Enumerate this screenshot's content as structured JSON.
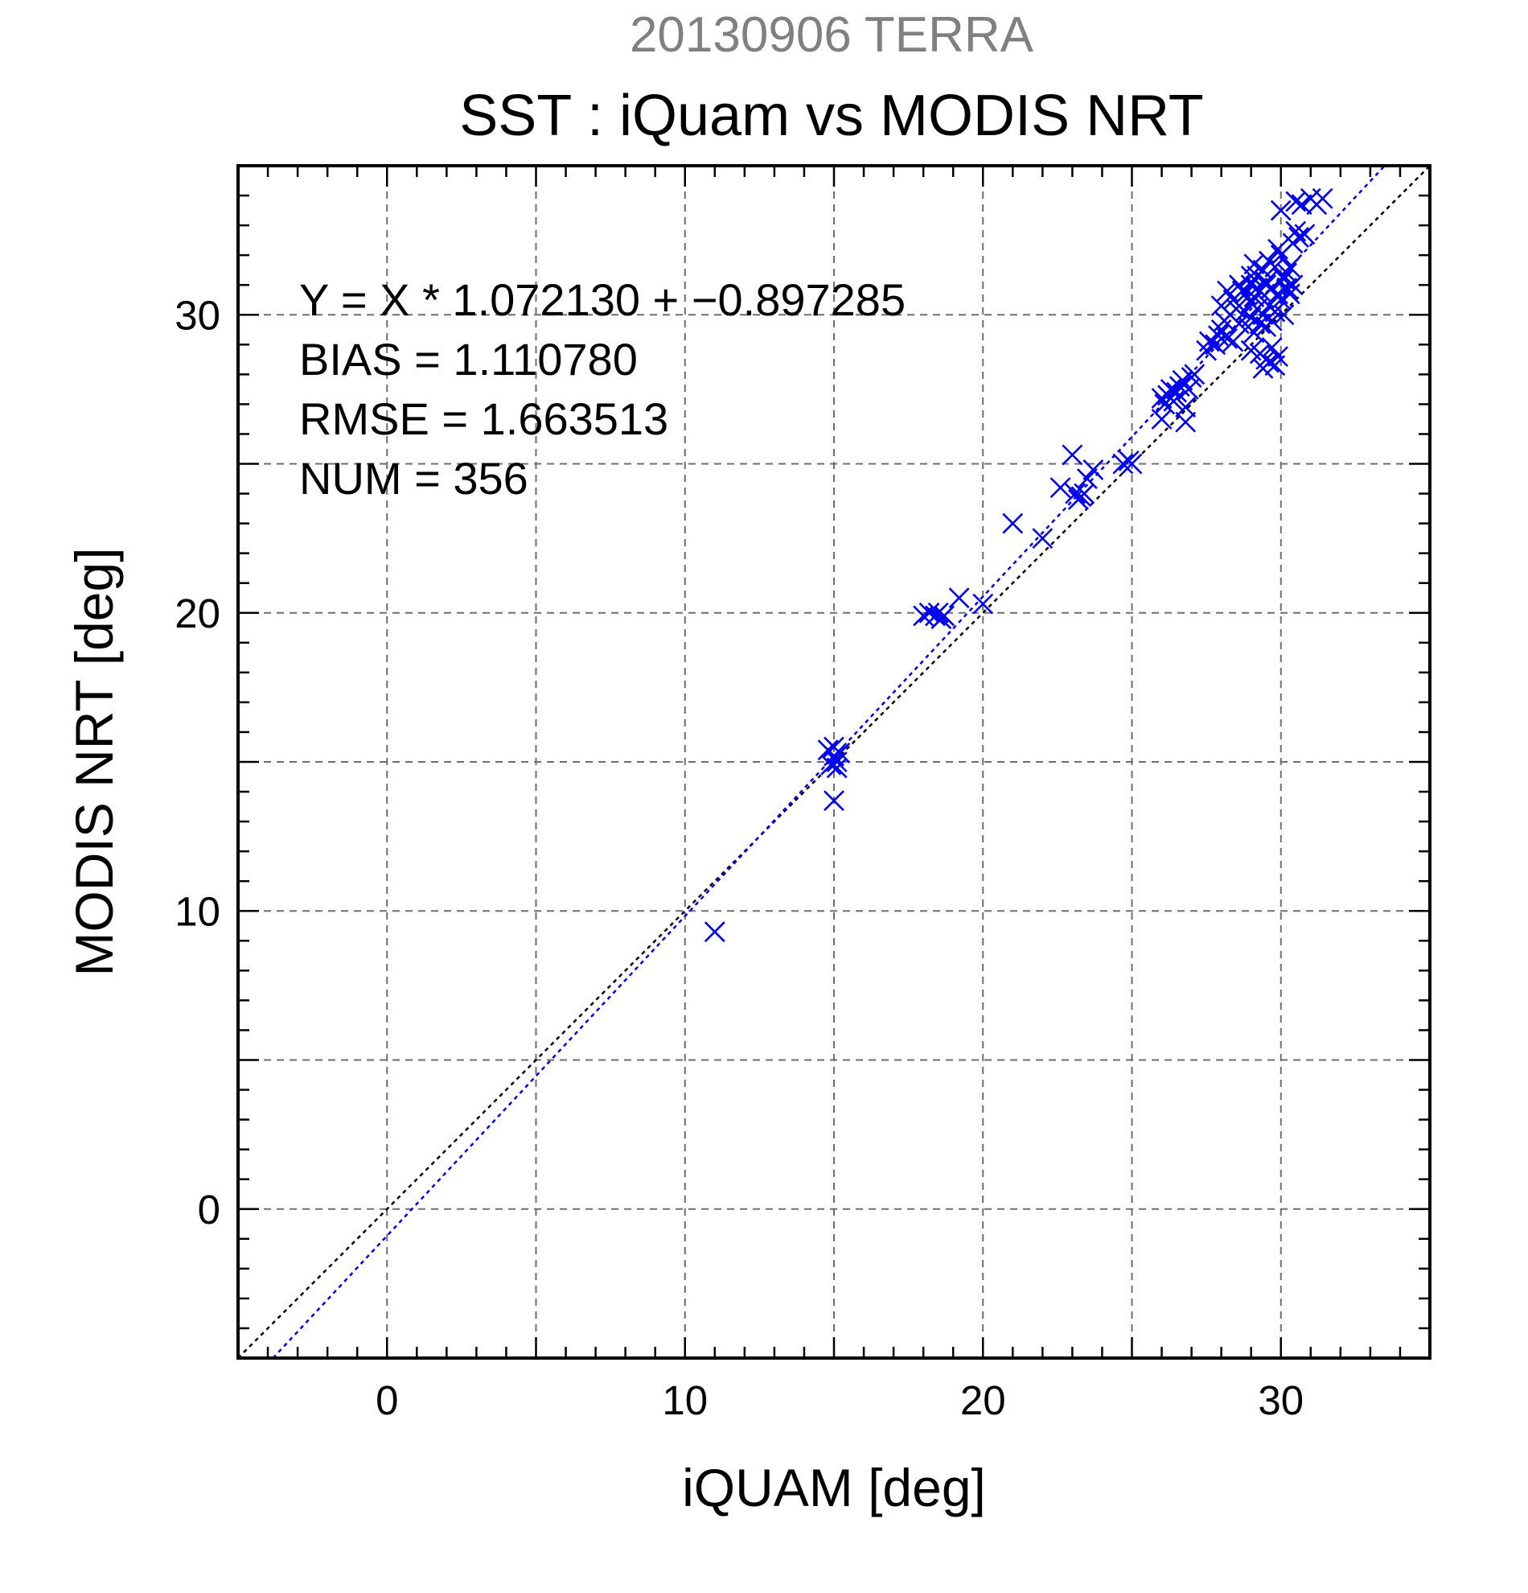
{
  "chart_data": {
    "type": "scatter",
    "supertitle": "20130906 TERRA",
    "title": "SST : iQuam vs MODIS NRT",
    "xlabel": "iQUAM [deg]",
    "ylabel": "MODIS NRT [deg]",
    "xlim": [
      -5,
      35
    ],
    "ylim": [
      -5,
      35
    ],
    "xticks": [
      0,
      10,
      20,
      30
    ],
    "yticks": [
      0,
      10,
      20,
      30
    ],
    "minor_step": 1,
    "grid": true,
    "grid_step": 5,
    "point_color": "#0000ee",
    "fit_color": "#0000ee",
    "identity_color": "#000000",
    "marker": "x",
    "stats": [
      "Y = X * 1.072130 + −0.897285",
      "BIAS = 1.110780",
      "RMSE = 1.663513",
      "NUM = 356"
    ],
    "fit": {
      "slope": 1.07213,
      "intercept": -0.897285
    },
    "identity": {
      "slope": 1,
      "intercept": 0
    },
    "series": [
      {
        "values": [
          [
            11.0,
            9.3
          ],
          [
            15.0,
            13.7
          ],
          [
            14.9,
            14.9
          ],
          [
            15.0,
            15.2
          ],
          [
            15.1,
            15.0
          ],
          [
            14.8,
            15.4
          ],
          [
            15.2,
            15.3
          ],
          [
            15.0,
            15.5
          ],
          [
            15.1,
            14.8
          ],
          [
            18.0,
            19.9
          ],
          [
            18.2,
            20.0
          ],
          [
            18.4,
            19.9
          ],
          [
            18.5,
            20.0
          ],
          [
            18.6,
            19.8
          ],
          [
            18.7,
            19.9
          ],
          [
            19.2,
            20.5
          ],
          [
            20.0,
            20.3
          ],
          [
            21.0,
            23.0
          ],
          [
            22.0,
            22.5
          ],
          [
            22.6,
            24.2
          ],
          [
            23.0,
            25.3
          ],
          [
            23.1,
            24.0
          ],
          [
            23.2,
            23.8
          ],
          [
            23.4,
            24.0
          ],
          [
            23.5,
            24.5
          ],
          [
            23.7,
            24.8
          ],
          [
            23.3,
            23.9
          ],
          [
            24.7,
            25.0
          ],
          [
            24.9,
            25.1
          ],
          [
            25.0,
            25.0
          ],
          [
            26.0,
            26.5
          ],
          [
            26.1,
            27.0
          ],
          [
            26.2,
            27.3
          ],
          [
            26.3,
            27.5
          ],
          [
            26.5,
            27.4
          ],
          [
            26.7,
            27.8
          ],
          [
            26.8,
            26.9
          ],
          [
            27.0,
            27.9
          ],
          [
            26.4,
            27.1
          ],
          [
            26.6,
            27.6
          ],
          [
            26.9,
            27.5
          ],
          [
            27.1,
            28.0
          ],
          [
            26.0,
            27.2
          ],
          [
            26.8,
            26.4
          ],
          [
            27.5,
            28.8
          ],
          [
            27.8,
            29.0
          ],
          [
            28.0,
            29.5
          ],
          [
            28.1,
            29.8
          ],
          [
            28.3,
            30.0
          ],
          [
            28.5,
            30.2
          ],
          [
            28.6,
            29.7
          ],
          [
            28.8,
            30.1
          ],
          [
            29.0,
            30.4
          ],
          [
            28.2,
            29.2
          ],
          [
            28.9,
            29.6
          ],
          [
            28.4,
            30.5
          ],
          [
            27.9,
            29.3
          ],
          [
            28.7,
            30.8
          ],
          [
            27.6,
            29.1
          ],
          [
            28.0,
            30.3
          ],
          [
            29.0,
            31.0
          ],
          [
            29.1,
            30.6
          ],
          [
            29.2,
            31.3
          ],
          [
            29.3,
            30.8
          ],
          [
            29.4,
            31.5
          ],
          [
            29.5,
            31.0
          ],
          [
            29.6,
            31.8
          ],
          [
            29.7,
            30.9
          ],
          [
            29.8,
            31.6
          ],
          [
            29.9,
            30.7
          ],
          [
            30.0,
            32.0
          ],
          [
            30.1,
            31.2
          ],
          [
            30.2,
            31.4
          ],
          [
            29.0,
            29.9
          ],
          [
            29.2,
            30.2
          ],
          [
            29.4,
            30.0
          ],
          [
            29.6,
            30.3
          ],
          [
            29.8,
            30.1
          ],
          [
            30.0,
            30.5
          ],
          [
            30.2,
            30.9
          ],
          [
            29.5,
            29.6
          ],
          [
            29.1,
            29.4
          ],
          [
            29.7,
            29.8
          ],
          [
            30.1,
            30.0
          ],
          [
            29.3,
            29.7
          ],
          [
            29.5,
            28.5
          ],
          [
            29.7,
            28.9
          ],
          [
            29.8,
            28.3
          ],
          [
            29.3,
            28.7
          ],
          [
            29.6,
            28.4
          ],
          [
            29.9,
            28.6
          ],
          [
            29.0,
            28.8
          ],
          [
            29.4,
            28.2
          ],
          [
            30.4,
            32.4
          ],
          [
            30.6,
            32.6
          ],
          [
            30.8,
            32.7
          ],
          [
            30.5,
            32.8
          ],
          [
            30.0,
            33.5
          ],
          [
            30.5,
            33.8
          ],
          [
            31.0,
            33.9
          ],
          [
            31.2,
            33.7
          ],
          [
            31.4,
            33.9
          ],
          [
            30.7,
            33.7
          ],
          [
            28.6,
            31.0
          ],
          [
            28.8,
            30.7
          ],
          [
            29.2,
            30.9
          ],
          [
            29.0,
            31.3
          ],
          [
            29.5,
            31.1
          ],
          [
            30.3,
            31.6
          ],
          [
            29.9,
            32.2
          ],
          [
            30.4,
            31.0
          ],
          [
            28.4,
            29.1
          ],
          [
            28.2,
            30.8
          ],
          [
            29.1,
            31.7
          ],
          [
            30.3,
            30.7
          ]
        ]
      }
    ]
  }
}
